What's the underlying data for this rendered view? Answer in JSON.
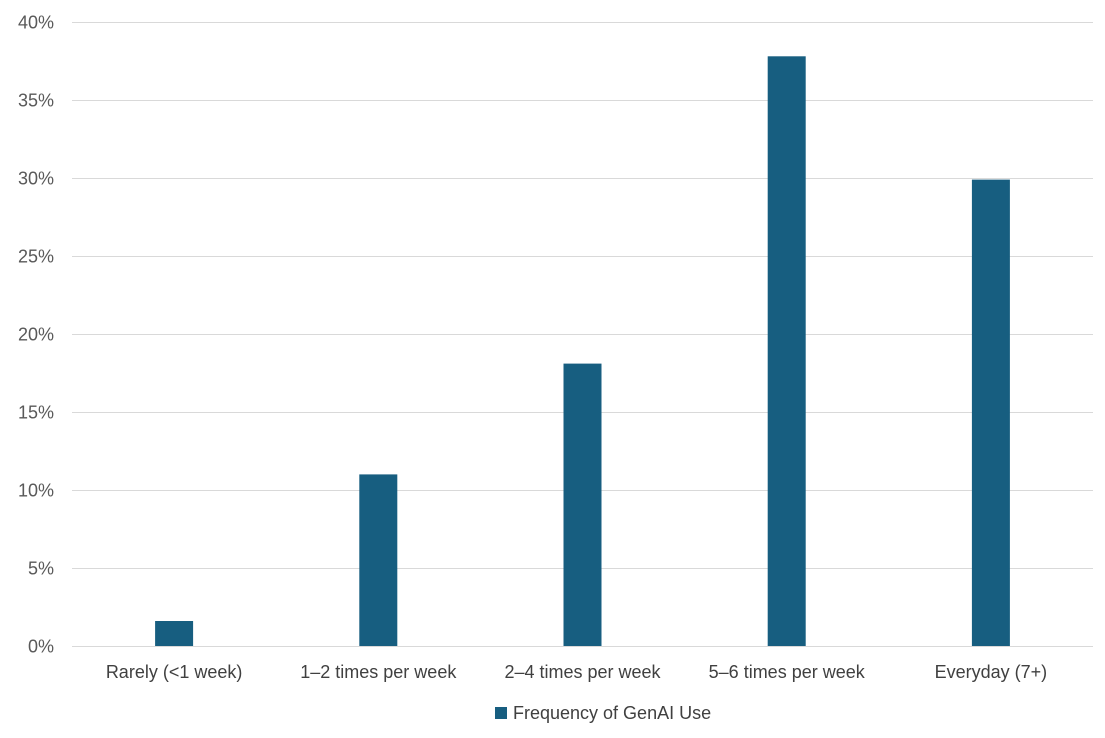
{
  "chart_data": {
    "type": "bar",
    "categories": [
      "Rarely (<1 week)",
      "1–2 times per week",
      "2–4 times per week",
      "5–6 times per week",
      "Everyday (7+)"
    ],
    "series": [
      {
        "name": "Frequency of GenAI Use",
        "values": [
          1.6,
          11.0,
          18.1,
          37.8,
          29.9
        ]
      }
    ],
    "ylim": [
      0,
      40
    ],
    "yticks": [
      0,
      5,
      10,
      15,
      20,
      25,
      30,
      35,
      40
    ],
    "ytick_suffix": "%",
    "grid": true,
    "legend_position": "bottom",
    "title": "",
    "xlabel": "",
    "ylabel": "",
    "colors": {
      "bar": "#175e80"
    }
  }
}
